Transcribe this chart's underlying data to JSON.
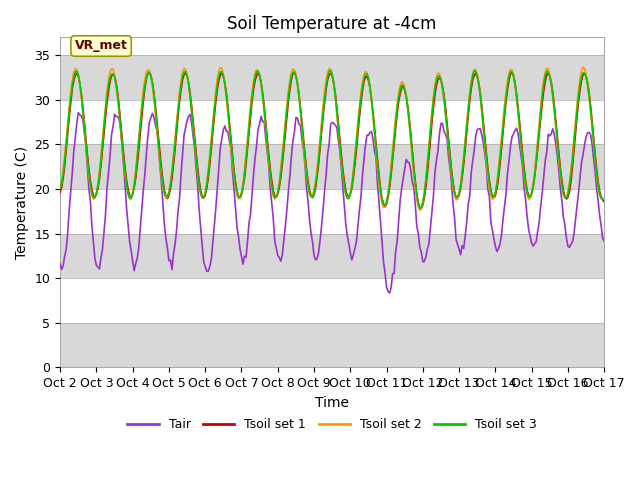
{
  "title": "Soil Temperature at -4cm",
  "xlabel": "Time",
  "ylabel": "Temperature (C)",
  "ylim": [
    0,
    37
  ],
  "yticks": [
    0,
    5,
    10,
    15,
    20,
    25,
    30,
    35
  ],
  "xlim_days": [
    0,
    15
  ],
  "x_tick_labels": [
    "Oct 2",
    "Oct 3",
    "Oct 4",
    "Oct 5",
    "Oct 6",
    "Oct 7",
    "Oct 8",
    "Oct 9",
    "Oct 10",
    "Oct 11",
    "Oct 12",
    "Oct 13",
    "Oct 14",
    "Oct 15",
    "Oct 16",
    "Oct 17"
  ],
  "colors": {
    "Tair": "#9933cc",
    "Tsoil1": "#cc0000",
    "Tsoil2": "#ff9900",
    "Tsoil3": "#00cc00"
  },
  "legend_labels": [
    "Tair",
    "Tsoil set 1",
    "Tsoil set 2",
    "Tsoil set 3"
  ],
  "annotation_text": "VR_met",
  "annotation_box_facecolor": "#ffffcc",
  "annotation_text_color": "#660000",
  "annotation_edge_color": "#999900",
  "band_gray_color": "#d8d8d8",
  "band_white_color": "#ffffff",
  "linewidth": 1.2,
  "title_fontsize": 12,
  "axis_label_fontsize": 10,
  "tick_fontsize": 9,
  "legend_fontsize": 9
}
